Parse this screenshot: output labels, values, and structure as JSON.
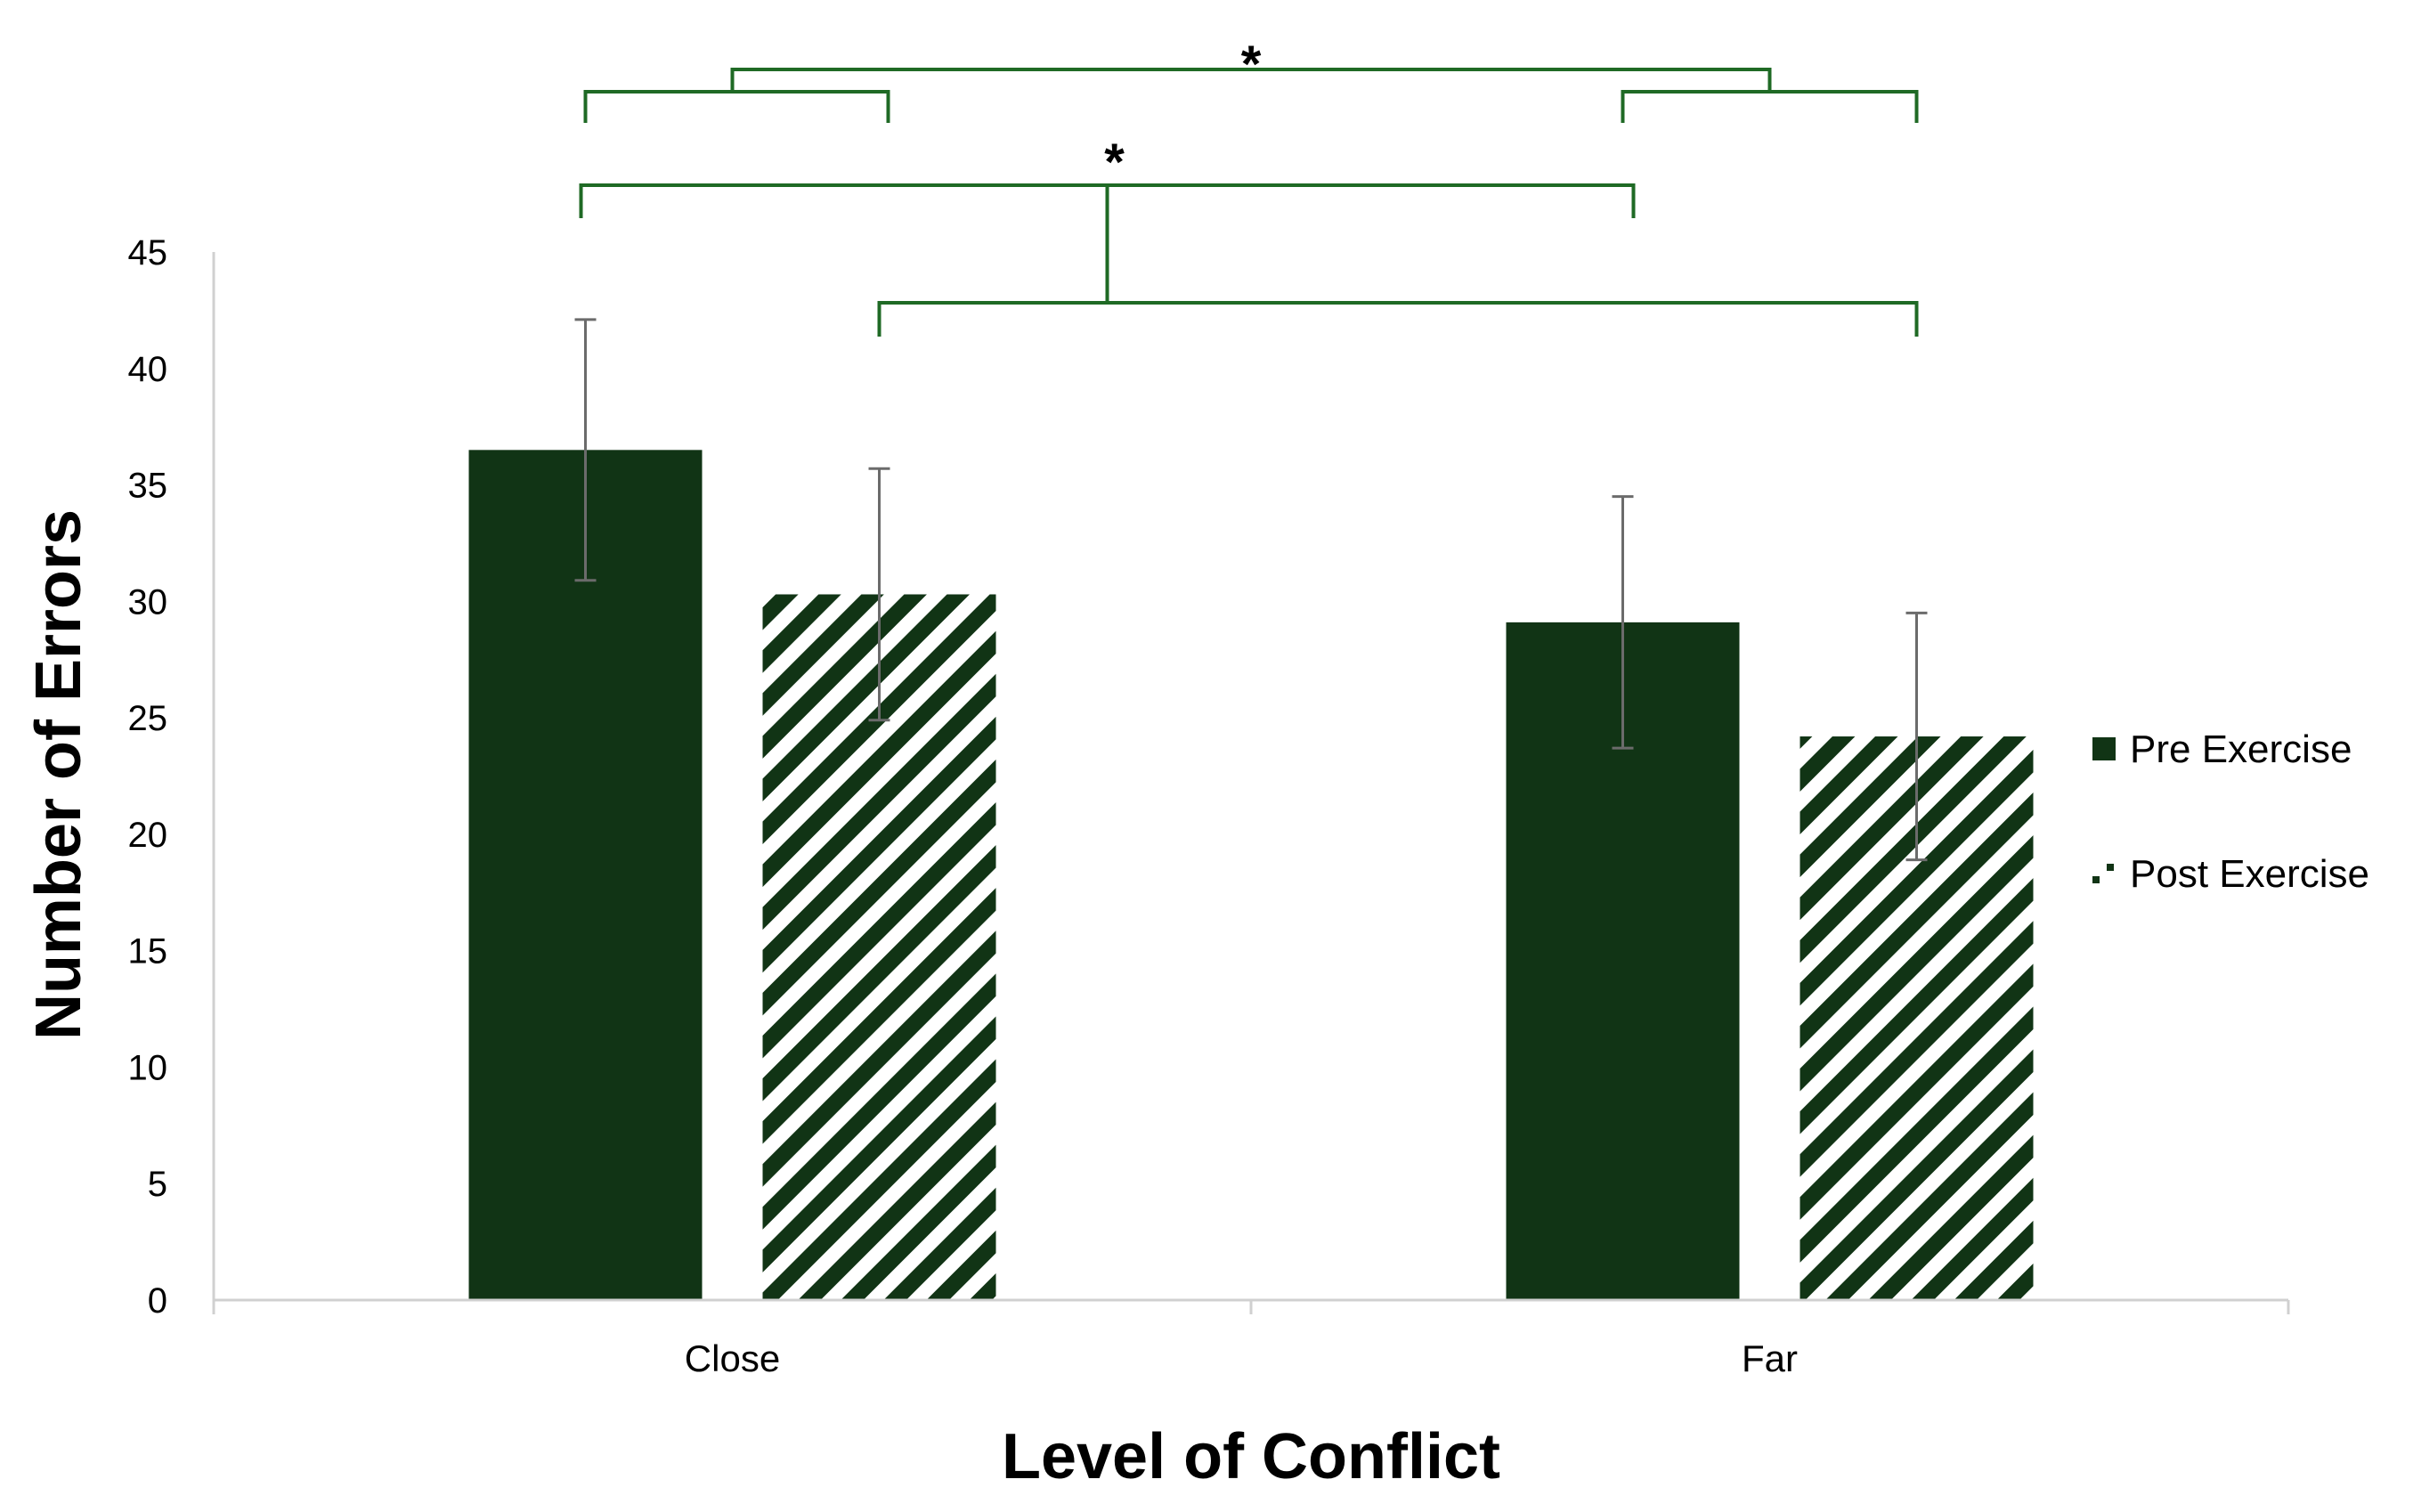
{
  "colors": {
    "pre": "#113415",
    "bracket": "#1f6a25",
    "error_bar": "#6b6b6b",
    "axis": "#d0d0d0"
  },
  "chart_data": {
    "type": "bar",
    "categories": [
      "Close",
      "Far"
    ],
    "series": [
      {
        "name": "Pre Exercise",
        "values": [
          36.5,
          29.1
        ],
        "error": [
          5.6,
          5.4
        ],
        "fill": "solid"
      },
      {
        "name": "Post Exercise",
        "values": [
          30.3,
          24.2
        ],
        "error": [
          5.4,
          5.3
        ],
        "fill": "diagonal-stripes"
      }
    ],
    "xlabel": "Level of Conflict",
    "ylabel": "Number of Errors",
    "ylim": [
      0,
      45
    ],
    "yticks": [
      0,
      5,
      10,
      15,
      20,
      25,
      30,
      35,
      40,
      45
    ],
    "grid": false,
    "legend_position": "right",
    "significance": [
      {
        "label": "*",
        "comparison": "Close vs Far (Pre)"
      },
      {
        "label": "*",
        "comparison": "Close vs Far (Post)"
      }
    ]
  }
}
